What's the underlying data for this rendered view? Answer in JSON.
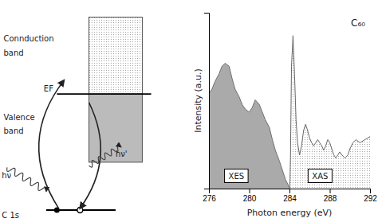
{
  "chart_data": {
    "type": "area",
    "title": "C₆₀",
    "xlabel": "Photon energy (eV)",
    "ylabel": "Intensity (a.u.)",
    "xlim": [
      276,
      292
    ],
    "xticks": [
      276,
      280,
      284,
      288,
      292
    ],
    "ylim": [
      0,
      1.15
    ],
    "yticks": [],
    "tick_labels": "x",
    "series": [
      {
        "name": "XES",
        "color": "#aaaaaa",
        "x": [
          276.0,
          276.3,
          276.6,
          277.0,
          277.3,
          277.6,
          278.0,
          278.3,
          278.6,
          279.0,
          279.3,
          279.6,
          280.0,
          280.3,
          280.6,
          281.0,
          281.3,
          281.6,
          282.0,
          282.3,
          282.6,
          283.0,
          283.3,
          283.6,
          283.9,
          284.0
        ],
        "values": [
          0.62,
          0.65,
          0.7,
          0.75,
          0.8,
          0.82,
          0.8,
          0.72,
          0.65,
          0.6,
          0.55,
          0.52,
          0.5,
          0.53,
          0.58,
          0.55,
          0.5,
          0.45,
          0.4,
          0.32,
          0.25,
          0.18,
          0.12,
          0.06,
          0.02,
          0.0
        ]
      },
      {
        "name": "XAS",
        "x": [
          284.0,
          284.05,
          284.1,
          284.2,
          284.35,
          284.5,
          284.65,
          284.8,
          285.0,
          285.2,
          285.4,
          285.6,
          285.8,
          286.0,
          286.2,
          286.4,
          286.6,
          286.8,
          287.0,
          287.2,
          287.4,
          287.6,
          287.8,
          288.0,
          288.2,
          288.4,
          288.6,
          288.8,
          289.0,
          289.2,
          289.5,
          289.8,
          290.0,
          290.3,
          290.6,
          291.0,
          291.5,
          292.0
        ],
        "values": [
          0.0,
          0.05,
          0.2,
          0.8,
          1.0,
          0.75,
          0.45,
          0.3,
          0.22,
          0.28,
          0.38,
          0.42,
          0.38,
          0.33,
          0.3,
          0.28,
          0.3,
          0.32,
          0.3,
          0.28,
          0.25,
          0.28,
          0.32,
          0.3,
          0.26,
          0.22,
          0.2,
          0.22,
          0.24,
          0.22,
          0.2,
          0.22,
          0.26,
          0.3,
          0.32,
          0.3,
          0.32,
          0.34
        ]
      }
    ],
    "annotations": [
      "Connduction",
      "band",
      "Valence",
      "band",
      "EF",
      "C 1s",
      "hν",
      "hν'"
    ]
  }
}
